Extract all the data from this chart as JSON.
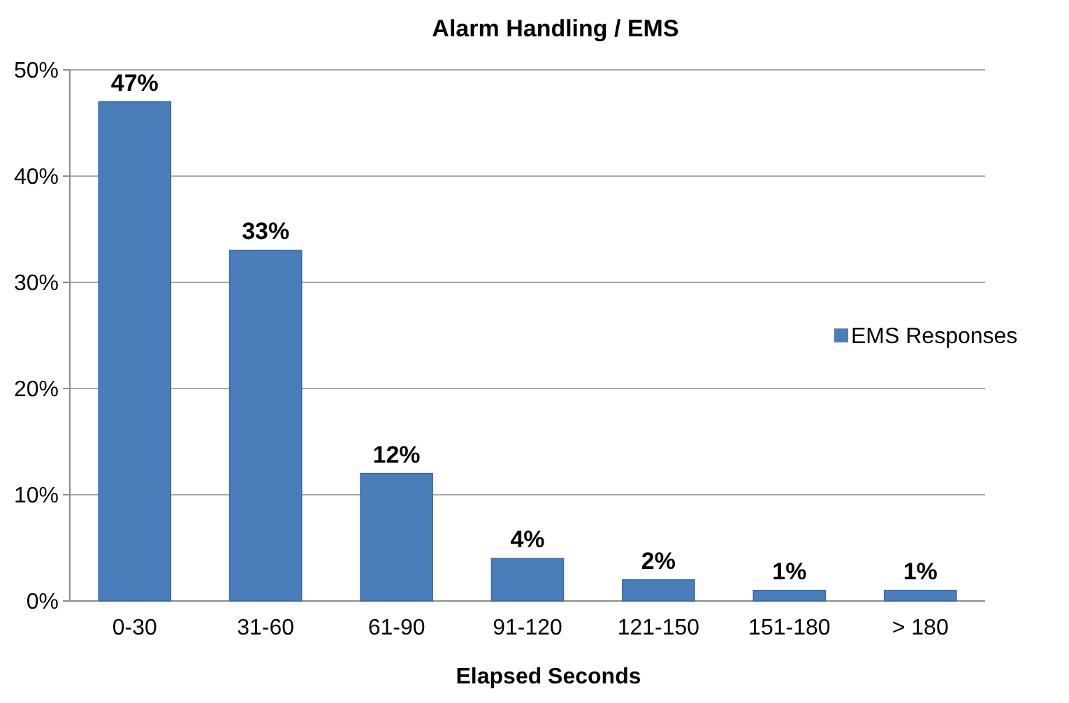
{
  "chart_data": {
    "type": "bar",
    "title": "Alarm Handling / EMS",
    "xlabel": "Elapsed Seconds",
    "categories": [
      "0-30",
      "31-60",
      "61-90",
      "91-120",
      "121-150",
      "151-180",
      "> 180"
    ],
    "series": [
      {
        "name": "EMS Responses",
        "color": "#4a7ebb",
        "values": [
          47,
          33,
          12,
          4,
          2,
          1,
          1
        ],
        "value_labels": [
          "47%",
          "33%",
          "12%",
          "4%",
          "2%",
          "1%",
          "1%"
        ]
      }
    ],
    "ylim": [
      0,
      50
    ],
    "yticks": [
      {
        "value": 0,
        "label": "0%"
      },
      {
        "value": 10,
        "label": "10%"
      },
      {
        "value": 20,
        "label": "20%"
      },
      {
        "value": 30,
        "label": "30%"
      },
      {
        "value": 40,
        "label": "40%"
      },
      {
        "value": 50,
        "label": "50%"
      }
    ],
    "grid": "y",
    "legend": "right"
  }
}
